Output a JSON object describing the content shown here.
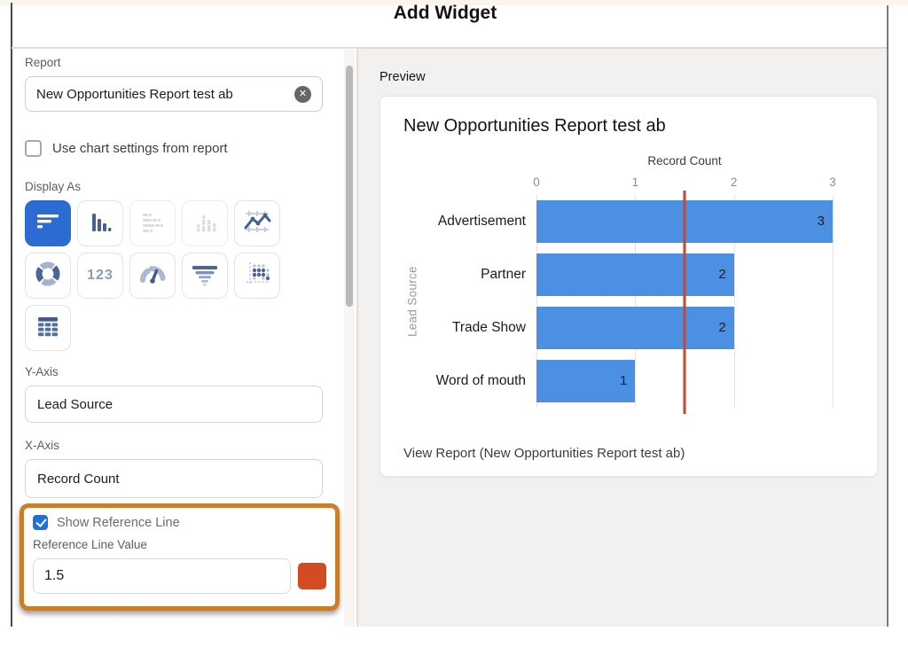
{
  "dialog": {
    "title": "Add Widget"
  },
  "colors": {
    "accent_selected_tile": "#2c6bd2",
    "checkbox_checked": "#1f6fdd",
    "bar": "#4b90e2",
    "reference_line": "#c5472e",
    "swatch": "#d24b21",
    "highlight_border": "#c97e2d"
  },
  "left_panel": {
    "report_label": "Report",
    "report_value": "New Opportunities Report test ab",
    "clear_icon": "x-circle",
    "use_chart_settings_label": "Use chart settings from report",
    "use_chart_settings_checked": false,
    "display_as_label": "Display As",
    "display_as_options": [
      {
        "name": "horizontal-bar-chart",
        "state": "selected"
      },
      {
        "name": "vertical-bar-chart",
        "state": ""
      },
      {
        "name": "stacked-horizontal-bar-chart",
        "state": "disabled"
      },
      {
        "name": "stacked-vertical-bar-chart",
        "state": "disabled"
      },
      {
        "name": "line-chart",
        "state": ""
      },
      {
        "name": "donut-chart",
        "state": ""
      },
      {
        "name": "metric",
        "state": "",
        "label": "123"
      },
      {
        "name": "gauge-chart",
        "state": ""
      },
      {
        "name": "funnel-chart",
        "state": ""
      },
      {
        "name": "scatter-chart",
        "state": ""
      },
      {
        "name": "table",
        "state": ""
      }
    ],
    "y_axis_label": "Y-Axis",
    "y_axis_value": "Lead Source",
    "x_axis_label": "X-Axis",
    "x_axis_value": "Record Count",
    "reference_line_section": {
      "checkbox_label": "Show Reference Line",
      "checked": true,
      "value_label": "Reference Line Value",
      "value": "1.5"
    }
  },
  "preview_panel": {
    "label": "Preview",
    "view_report_text": "View Report (New Opportunities Report test ab)"
  },
  "chart_data": {
    "type": "bar",
    "orientation": "horizontal",
    "title": "New Opportunities Report test ab",
    "xlabel": "Record Count",
    "ylabel": "Lead Source",
    "categories": [
      "Advertisement",
      "Partner",
      "Trade Show",
      "Word of mouth"
    ],
    "values": [
      3,
      2,
      2,
      1
    ],
    "xlim": [
      0,
      3
    ],
    "xticks": [
      0,
      1,
      2,
      3
    ],
    "grid": true,
    "legend": "none",
    "bar_color": "#4b90e2",
    "value_labels": "inside-end",
    "reference_line": {
      "value": 1.5,
      "color": "#c5472e"
    }
  }
}
